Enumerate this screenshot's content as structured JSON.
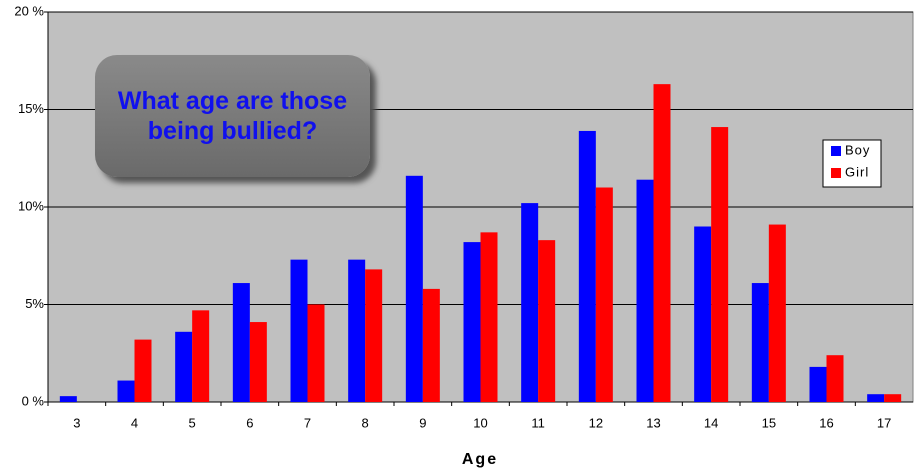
{
  "chart_data": {
    "type": "bar",
    "annotation": "What age are those being bullied?",
    "x_label": "Age",
    "categories": [
      "3",
      "4",
      "5",
      "6",
      "7",
      "8",
      "9",
      "10",
      "11",
      "12",
      "13",
      "14",
      "15",
      "16",
      "17"
    ],
    "series": [
      {
        "name": "Boy",
        "color": "#0000ff",
        "values": [
          0.3,
          1.1,
          3.6,
          6.1,
          7.3,
          7.3,
          11.6,
          8.2,
          10.2,
          13.9,
          11.4,
          9.0,
          6.1,
          1.8,
          0.4
        ]
      },
      {
        "name": "Girl",
        "color": "#ff0000",
        "values": [
          0,
          3.2,
          4.7,
          4.1,
          5.0,
          6.8,
          5.8,
          8.7,
          8.3,
          11.0,
          16.3,
          14.1,
          9.1,
          2.4,
          0.4
        ]
      }
    ],
    "ylim": [
      0,
      20
    ],
    "yticks": [
      {
        "value": 0,
        "label": "0 %"
      },
      {
        "value": 5,
        "label": "5%"
      },
      {
        "value": 10,
        "label": "10%"
      },
      {
        "value": 15,
        "label": "15%"
      },
      {
        "value": 20,
        "label": "20 %"
      }
    ],
    "grid": true
  }
}
